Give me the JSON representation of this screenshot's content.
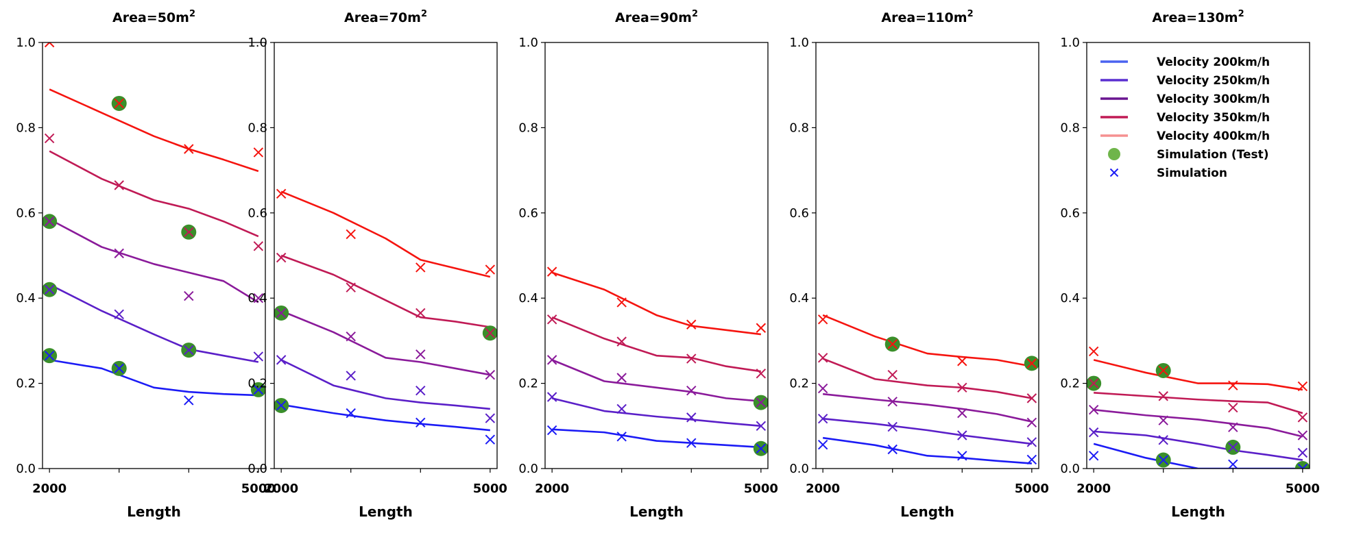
{
  "chart_data": {
    "type": "line",
    "xlabel": "Length",
    "ylim": [
      0,
      1.0
    ],
    "xlim": [
      1900,
      5100
    ],
    "yticks": [
      "0.0",
      "0.2",
      "0.4",
      "0.6",
      "0.8",
      "1.0"
    ],
    "xticks": [
      {
        "value": 2000,
        "label": "2000"
      },
      {
        "value": 5000,
        "label": "5000"
      }
    ],
    "grid": false,
    "legend_position": "top-right",
    "colors": {
      "Velocity 200km/h": "#1b1bf5",
      "Velocity 250km/h": "#5a1fc8",
      "Velocity 300km/h": "#8a1a9a",
      "Velocity 350km/h": "#c01a55",
      "Velocity 400km/h": "#f5140f",
      "test_marker": "#3a8f2a"
    },
    "line_x": [
      2000,
      2750,
      3500,
      4000,
      4500,
      5000
    ],
    "sim_x": [
      2000,
      3000,
      4000,
      5000
    ],
    "legend": {
      "entries": [
        {
          "label": "Velocity 200km/h",
          "kind": "line",
          "color": "#4a63f0"
        },
        {
          "label": "Velocity 250km/h",
          "kind": "line",
          "color": "#5a2fd0"
        },
        {
          "label": "Velocity 300km/h",
          "kind": "line",
          "color": "#6a1590"
        },
        {
          "label": "Velocity 350km/h",
          "kind": "line",
          "color": "#c01a55"
        },
        {
          "label": "Velocity 400km/h",
          "kind": "line",
          "color": "#f59090"
        },
        {
          "label": "Simulation  (Test)",
          "kind": "dot",
          "color": "#6fb54a"
        },
        {
          "label": "Simulation",
          "kind": "cross",
          "color": "#1b1bf5"
        }
      ]
    },
    "panels": [
      {
        "title": "Area=50m",
        "title_sup": "2",
        "series": [
          {
            "name": "Velocity 200km/h",
            "line": [
              0.255,
              0.235,
              0.19,
              0.18,
              0.175,
              0.172
            ],
            "sim": [
              0.265,
              0.235,
              0.16,
              0.185
            ],
            "test": [
              true,
              true,
              false,
              true
            ]
          },
          {
            "name": "Velocity 250km/h",
            "line": [
              0.432,
              0.37,
              0.315,
              0.28,
              0.265,
              0.25
            ],
            "sim": [
              0.42,
              0.362,
              0.278,
              0.263
            ],
            "test": [
              true,
              false,
              true,
              false
            ]
          },
          {
            "name": "Velocity 300km/h",
            "line": [
              0.585,
              0.52,
              0.48,
              0.46,
              0.44,
              0.39
            ],
            "sim": [
              0.58,
              0.505,
              0.405,
              0.4
            ],
            "test": [
              true,
              false,
              false,
              false
            ]
          },
          {
            "name": "Velocity 350km/h",
            "line": [
              0.745,
              0.68,
              0.63,
              0.61,
              0.58,
              0.545
            ],
            "sim": [
              0.775,
              0.665,
              0.555,
              0.522
            ],
            "test": [
              false,
              false,
              true,
              false
            ]
          },
          {
            "name": "Velocity 400km/h",
            "line": [
              0.89,
              0.835,
              0.78,
              0.75,
              0.725,
              0.698
            ],
            "sim": [
              1.0,
              0.857,
              0.75,
              0.742
            ],
            "test": [
              false,
              true,
              false,
              false
            ]
          }
        ]
      },
      {
        "title": "Area=70m",
        "title_sup": "2",
        "series": [
          {
            "name": "Velocity 200km/h",
            "line": [
              0.15,
              0.13,
              0.113,
              0.105,
              0.098,
              0.09
            ],
            "sim": [
              0.148,
              0.13,
              0.108,
              0.068
            ],
            "test": [
              true,
              false,
              false,
              false
            ]
          },
          {
            "name": "Velocity 250km/h",
            "line": [
              0.255,
              0.195,
              0.165,
              0.155,
              0.148,
              0.14
            ],
            "sim": [
              0.255,
              0.218,
              0.183,
              0.118
            ],
            "test": [
              false,
              false,
              false,
              false
            ]
          },
          {
            "name": "Velocity 300km/h",
            "line": [
              0.37,
              0.32,
              0.26,
              0.25,
              0.235,
              0.22
            ],
            "sim": [
              0.365,
              0.31,
              0.268,
              0.22
            ],
            "test": [
              true,
              false,
              false,
              false
            ]
          },
          {
            "name": "Velocity 350km/h",
            "line": [
              0.5,
              0.455,
              0.395,
              0.355,
              0.345,
              0.332
            ],
            "sim": [
              0.495,
              0.425,
              0.365,
              0.318
            ],
            "test": [
              false,
              false,
              false,
              true
            ]
          },
          {
            "name": "Velocity 400km/h",
            "line": [
              0.65,
              0.6,
              0.54,
              0.49,
              0.47,
              0.45
            ],
            "sim": [
              0.645,
              0.55,
              0.472,
              0.467
            ],
            "test": [
              false,
              false,
              false,
              false
            ]
          }
        ]
      },
      {
        "title": "Area=90m",
        "title_sup": "2",
        "series": [
          {
            "name": "Velocity 200km/h",
            "line": [
              0.092,
              0.085,
              0.065,
              0.06,
              0.055,
              0.05
            ],
            "sim": [
              0.09,
              0.075,
              0.06,
              0.047
            ],
            "test": [
              false,
              false,
              false,
              true
            ]
          },
          {
            "name": "Velocity 250km/h",
            "line": [
              0.165,
              0.135,
              0.122,
              0.115,
              0.107,
              0.1
            ],
            "sim": [
              0.168,
              0.14,
              0.12,
              0.1
            ],
            "test": [
              false,
              false,
              false,
              false
            ]
          },
          {
            "name": "Velocity 300km/h",
            "line": [
              0.255,
              0.205,
              0.19,
              0.18,
              0.165,
              0.158
            ],
            "sim": [
              0.255,
              0.213,
              0.183,
              0.155
            ],
            "test": [
              false,
              false,
              false,
              true
            ]
          },
          {
            "name": "Velocity 350km/h",
            "line": [
              0.355,
              0.305,
              0.265,
              0.26,
              0.24,
              0.228
            ],
            "sim": [
              0.35,
              0.298,
              0.258,
              0.223
            ],
            "test": [
              false,
              false,
              false,
              false
            ]
          },
          {
            "name": "Velocity 400km/h",
            "line": [
              0.46,
              0.42,
              0.36,
              0.335,
              0.325,
              0.315
            ],
            "sim": [
              0.462,
              0.39,
              0.338,
              0.33
            ],
            "test": [
              false,
              false,
              false,
              false
            ]
          }
        ]
      },
      {
        "title": "Area=110m",
        "title_sup": "2",
        "series": [
          {
            "name": "Velocity 200km/h",
            "line": [
              0.072,
              0.055,
              0.03,
              0.025,
              0.018,
              0.012
            ],
            "sim": [
              0.056,
              0.045,
              0.03,
              0.021
            ],
            "test": [
              false,
              false,
              false,
              false
            ]
          },
          {
            "name": "Velocity 250km/h",
            "line": [
              0.117,
              0.105,
              0.09,
              0.078,
              0.068,
              0.058
            ],
            "sim": [
              0.117,
              0.098,
              0.078,
              0.062
            ],
            "test": [
              false,
              false,
              false,
              false
            ]
          },
          {
            "name": "Velocity 300km/h",
            "line": [
              0.175,
              0.162,
              0.15,
              0.14,
              0.128,
              0.11
            ],
            "sim": [
              0.188,
              0.157,
              0.13,
              0.108
            ],
            "test": [
              false,
              false,
              false,
              false
            ]
          },
          {
            "name": "Velocity 350km/h",
            "line": [
              0.258,
              0.21,
              0.195,
              0.19,
              0.18,
              0.165
            ],
            "sim": [
              0.26,
              0.22,
              0.19,
              0.165
            ],
            "test": [
              false,
              false,
              false,
              false
            ]
          },
          {
            "name": "Velocity 400km/h",
            "line": [
              0.36,
              0.31,
              0.27,
              0.262,
              0.255,
              0.24
            ],
            "sim": [
              0.35,
              0.292,
              0.252,
              0.247
            ],
            "test": [
              false,
              true,
              false,
              true
            ]
          }
        ]
      },
      {
        "title": "Area=130m",
        "title_sup": "2",
        "series": [
          {
            "name": "Velocity 200km/h",
            "line": [
              0.058,
              0.025,
              0.0,
              0.0,
              0.0,
              0.0
            ],
            "sim": [
              0.03,
              0.02,
              0.01,
              0.0
            ],
            "test": [
              false,
              true,
              false,
              true
            ]
          },
          {
            "name": "Velocity 250km/h",
            "line": [
              0.087,
              0.078,
              0.058,
              0.043,
              0.032,
              0.02
            ],
            "sim": [
              0.085,
              0.067,
              0.05,
              0.037
            ],
            "test": [
              false,
              false,
              true,
              false
            ]
          },
          {
            "name": "Velocity 300km/h",
            "line": [
              0.138,
              0.125,
              0.115,
              0.105,
              0.095,
              0.075
            ],
            "sim": [
              0.138,
              0.113,
              0.097,
              0.078
            ],
            "test": [
              false,
              false,
              false,
              false
            ]
          },
          {
            "name": "Velocity 350km/h",
            "line": [
              0.178,
              0.17,
              0.162,
              0.158,
              0.155,
              0.13
            ],
            "sim": [
              0.2,
              0.17,
              0.143,
              0.12
            ],
            "test": [
              true,
              false,
              false,
              false
            ]
          },
          {
            "name": "Velocity 400km/h",
            "line": [
              0.255,
              0.225,
              0.2,
              0.2,
              0.198,
              0.185
            ],
            "sim": [
              0.275,
              0.23,
              0.195,
              0.193
            ],
            "test": [
              false,
              true,
              false,
              false
            ]
          }
        ]
      }
    ]
  }
}
